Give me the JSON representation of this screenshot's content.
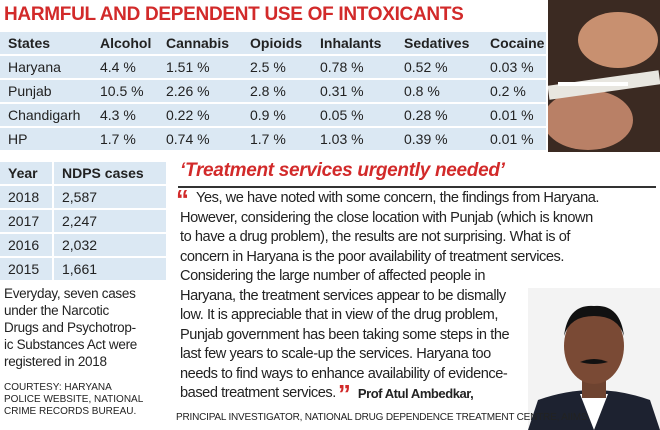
{
  "header": {
    "title": "HARMFUL AND DEPENDENT USE OF INTOXICANTS"
  },
  "table": {
    "columns": [
      "States",
      "Alcohol",
      "Cannabis",
      "Opioids",
      "Inhalants",
      "Sedatives",
      "Cocaine"
    ],
    "rows": [
      [
        "Haryana",
        "4.4 %",
        "1.51 %",
        "2.5 %",
        "0.78 %",
        "0.52 %",
        "0.03 %"
      ],
      [
        "Punjab",
        "10.5 %",
        "2.26 %",
        "2.8 %",
        "0.31 %",
        "0.8 %",
        "0.2 %"
      ],
      [
        "Chandigarh",
        "4.3 %",
        "0.22 %",
        "0.9 %",
        "0.05 %",
        "0.28 %",
        "0.01 %"
      ],
      [
        "HP",
        "1.7 %",
        "0.74 %",
        "1.7 %",
        "1.03 %",
        "0.39 %",
        "0.01 %"
      ]
    ]
  },
  "cases_table": {
    "columns": [
      "Year",
      "NDPS cases"
    ],
    "rows": [
      [
        "2018",
        "2,587"
      ],
      [
        "2017",
        "2,247"
      ],
      [
        "2016",
        "2,032"
      ],
      [
        "2015",
        "1,661"
      ]
    ]
  },
  "note": {
    "lines": [
      "Everyday, seven cases",
      "under the Narcotic",
      "Drugs and Psychotrop-",
      "ic Substances Act were",
      "registered in 2018"
    ]
  },
  "courtesy": {
    "lines": [
      "COURTESY: HARYANA",
      "POLICE WEBSITE, NATIONAL",
      "CRIME RECORDS BUREAU."
    ]
  },
  "quote": {
    "heading": "‘Treatment services urgently needed’",
    "open_mark": "“",
    "close_mark": "”",
    "lines": [
      "Yes, we have noted with some concern, the findings from Haryana.",
      "However, considering the close location with Punjab (which is known",
      "to have a drug problem), the results are not surprising. What is of",
      "concern in Haryana is the poor availability of treatment services.",
      "Considering the large number of affected people in",
      "Haryana, the treatment services appear to be dismally",
      "low. It is appreciable that in view of the drug problem,",
      "Punjab government has been taking some steps in the",
      "last few years to scale-up the services. Haryana too",
      "needs to find ways to enhance availability of evidence-",
      "based treatment services."
    ],
    "author": "Prof Atul Ambedkar,",
    "author_title": "PRINCIPAL INVESTIGATOR, NATIONAL DRUG DEPENDENCE TREATMENT CENTRE, AIIMS"
  }
}
